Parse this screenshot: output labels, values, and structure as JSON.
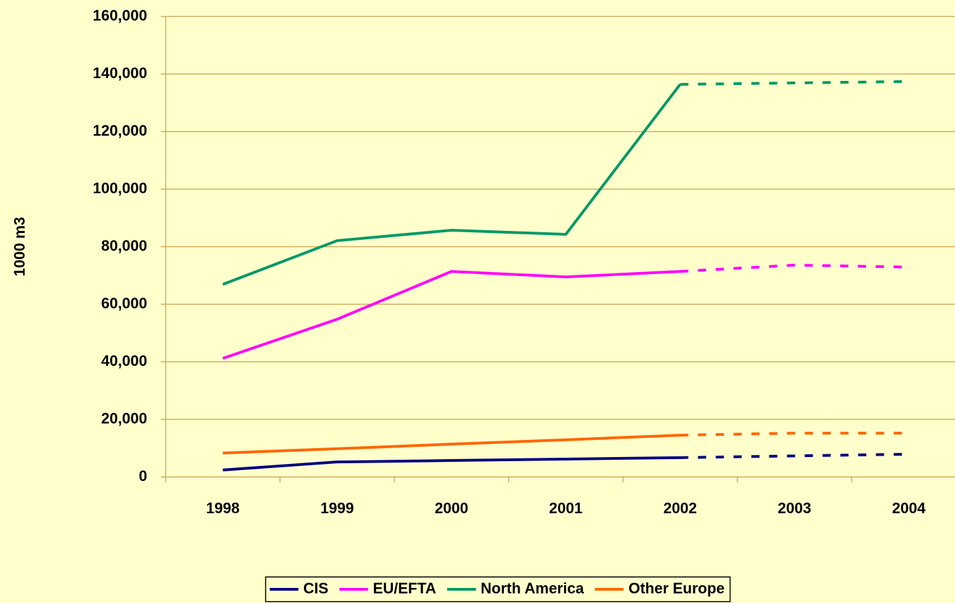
{
  "chart_data": {
    "type": "line",
    "y_axis_label": "1000 m3",
    "categories": [
      "1998",
      "1999",
      "2000",
      "2001",
      "2002",
      "2003",
      "2004"
    ],
    "series": [
      {
        "name": "CIS",
        "color": "#000080",
        "values": [
          2400,
          5200,
          5700,
          6200,
          6700,
          7300,
          7900
        ]
      },
      {
        "name": "EU/EFTA",
        "color": "#ff00ff",
        "values": [
          41200,
          54800,
          71400,
          69500,
          71400,
          73600,
          72900
        ]
      },
      {
        "name": "North America",
        "color": "#009966",
        "values": [
          66900,
          82100,
          85700,
          84300,
          136400,
          136900,
          137400
        ]
      },
      {
        "name": "Other Europe",
        "color": "#ff6600",
        "values": [
          8300,
          9800,
          11400,
          12900,
          14500,
          15200,
          15200
        ]
      }
    ],
    "dashed_from_index": 4,
    "ylim": [
      0,
      160000
    ],
    "yticks": [
      0,
      {
        "value": 20000,
        "label": "20,000"
      },
      {
        "value": 40000,
        "label": "40,000"
      },
      {
        "value": 60000,
        "label": "60,000"
      },
      {
        "value": 80000,
        "label": "80,000"
      },
      {
        "value": 100000,
        "label": "100,000"
      },
      {
        "value": 120000,
        "label": "120,000"
      },
      {
        "value": 140000,
        "label": "140,000"
      },
      {
        "value": 160000,
        "label": "160,000"
      }
    ],
    "grid": true,
    "legend": "bottom"
  }
}
